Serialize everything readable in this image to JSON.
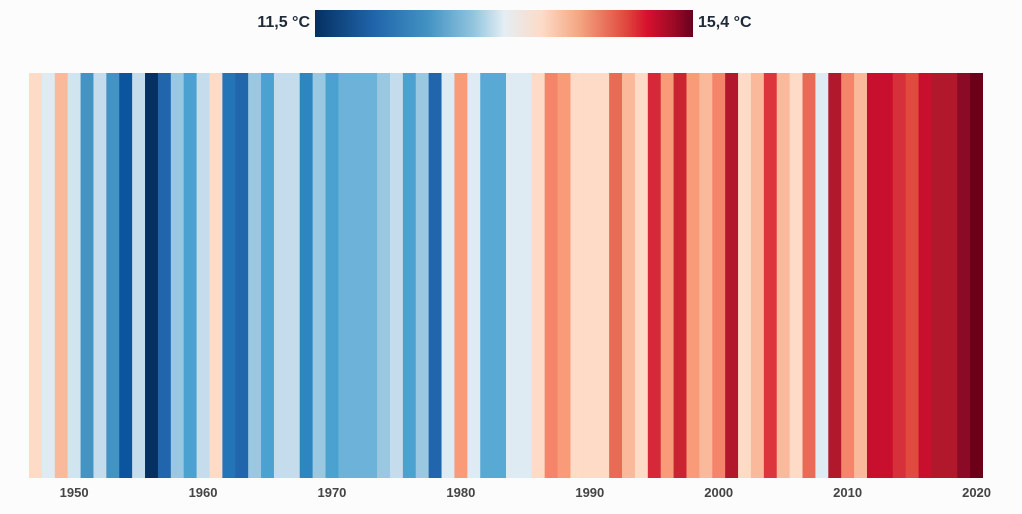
{
  "chart_data": {
    "type": "warming-stripes",
    "start_year": 1947,
    "end_year": 2020,
    "legend": {
      "min_label": "11,5 °C",
      "max_label": "15,4 °C",
      "min_value": 11.5,
      "max_value": 15.4
    },
    "x_ticks": [
      "1950",
      "1960",
      "1970",
      "1980",
      "1990",
      "2000",
      "2010",
      "2020"
    ],
    "colors": [
      "#fddbc7",
      "#deebf2",
      "#fbb99b",
      "#d1e5f0",
      "#4393c3",
      "#c5dcec",
      "#4393c3",
      "#0b559f",
      "#c5dcec",
      "#053061",
      "#2166ac",
      "#9ac8e0",
      "#4ba2d1",
      "#c5dcec",
      "#fddbc7",
      "#2375b8",
      "#2166ac",
      "#9ac8e0",
      "#4ba2d1",
      "#c5dcec",
      "#c5dcec",
      "#2e86c1",
      "#9ac8e0",
      "#4ba2d1",
      "#6cb2d9",
      "#6cb2d9",
      "#6cb2d9",
      "#9ac8e0",
      "#c5dcec",
      "#4ba2d1",
      "#9ac8e0",
      "#2166ac",
      "#deebf2",
      "#f99a79",
      "#deebf2",
      "#58aad4",
      "#58aad4",
      "#deebf2",
      "#deebf2",
      "#fddbc7",
      "#f4846a",
      "#f99a79",
      "#fddbc7",
      "#fddbc7",
      "#fddbc7",
      "#e86b56",
      "#fbb99b",
      "#fddbc7",
      "#d62839",
      "#f99a79",
      "#c9242f",
      "#f99a79",
      "#fbb99b",
      "#f4846a",
      "#b2182b",
      "#fddbc7",
      "#fbb99b",
      "#dd353d",
      "#fbb99b",
      "#fddbc7",
      "#e86b56",
      "#deebf2",
      "#b2182b",
      "#f4846a",
      "#fbb99b",
      "#c8102e",
      "#c8102e",
      "#d6303a",
      "#e04a3f",
      "#c8102e",
      "#b2182b",
      "#b2182b",
      "#8b0a25",
      "#6b0018"
    ]
  }
}
